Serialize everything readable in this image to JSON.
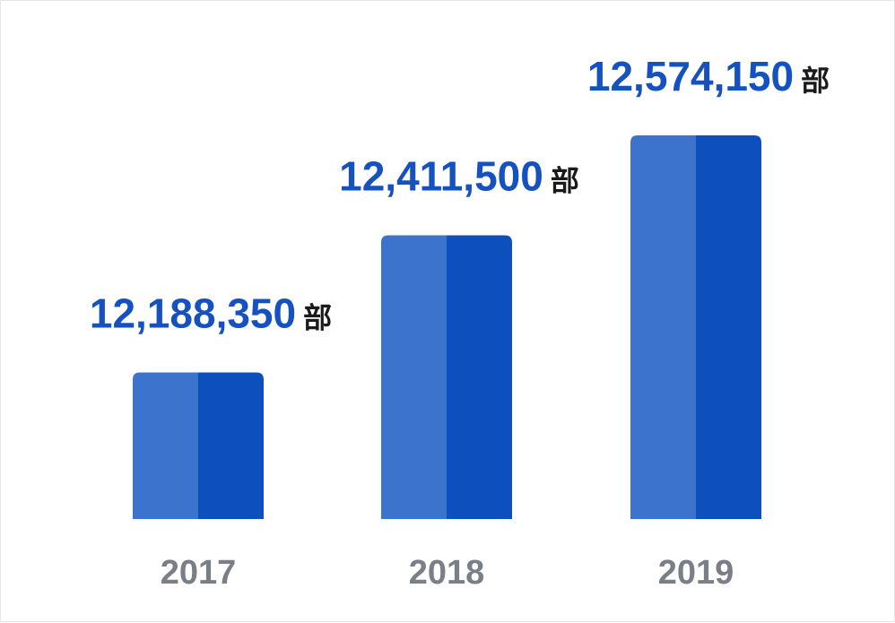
{
  "chart_data": {
    "type": "bar",
    "categories": [
      "2017",
      "2018",
      "2019"
    ],
    "values": [
      12188350,
      12411500,
      12574150
    ],
    "value_labels": [
      "12,188,350",
      "12,411,500",
      "12,574,150"
    ],
    "unit": "部",
    "title": "",
    "xlabel": "",
    "ylabel": "",
    "grid": false,
    "legend": "none"
  },
  "colors": {
    "bar_light": "#3c73cc",
    "bar_dark": "#0d50bd",
    "value_text": "#1552c0",
    "unit_text": "#1a1a1a",
    "category_text": "#7a7f87",
    "frame_border": "#e6e6e6"
  }
}
